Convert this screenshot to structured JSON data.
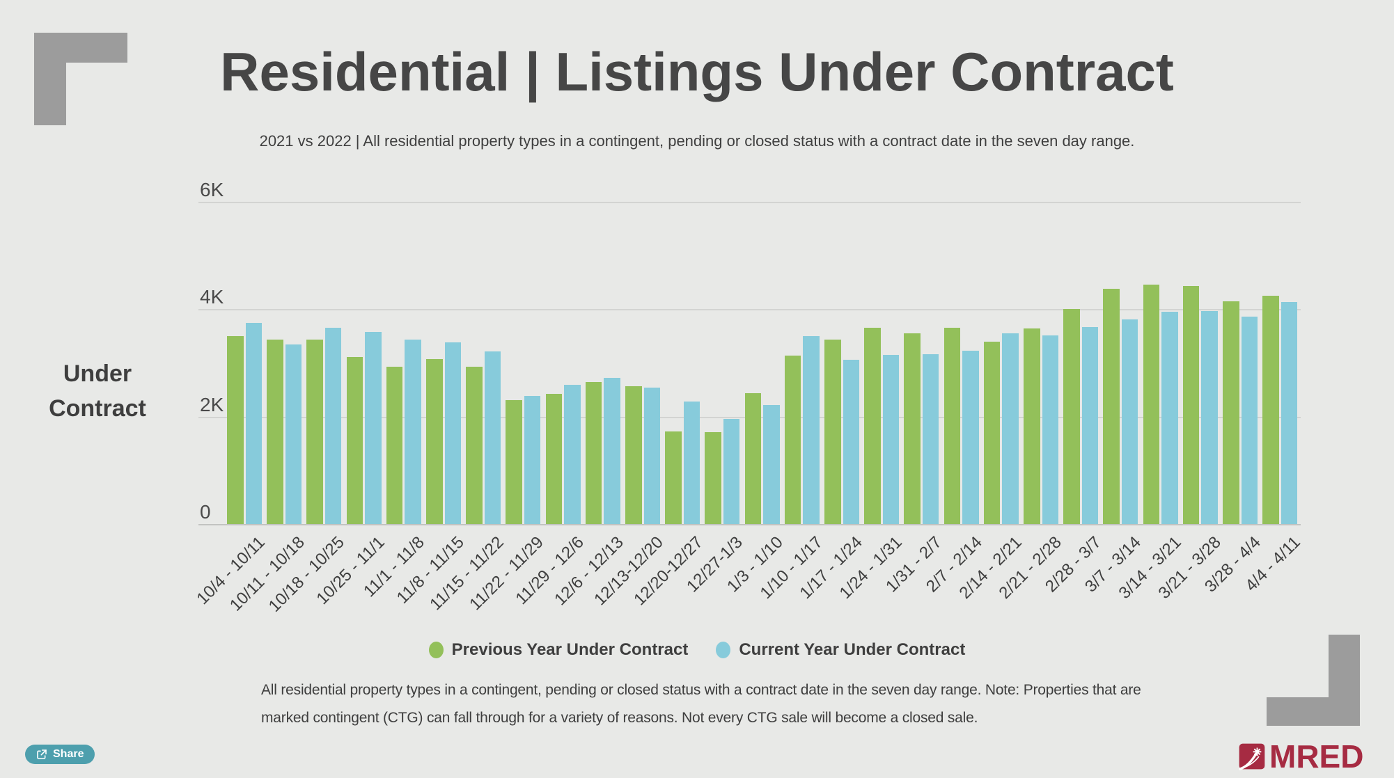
{
  "header": {
    "title": "Residential | Listings Under Contract",
    "subtitle": "2021 vs 2022 | All residential property types in a contingent, pending or closed status with a contract date in the seven day range."
  },
  "chart_data": {
    "type": "bar",
    "title": "Residential | Listings Under Contract",
    "xlabel": "",
    "ylabel": "Under Contract",
    "ylabel_lines": [
      "Under",
      "Contract"
    ],
    "ylim": [
      0,
      6000
    ],
    "grid": true,
    "legend_position": "bottom-center",
    "y_ticks": [
      {
        "label": "6K",
        "value": 6000
      },
      {
        "label": "4K",
        "value": 4000
      },
      {
        "label": "2K",
        "value": 2000
      },
      {
        "label": "0",
        "value": 0
      }
    ],
    "categories": [
      "10/4 - 10/11",
      "10/11 - 10/18",
      "10/18 - 10/25",
      "10/25 - 11/1",
      "11/1 - 11/8",
      "11/8 - 11/15",
      "11/15 - 11/22",
      "11/22 - 11/29",
      "11/29 - 12/6",
      "12/6 - 12/13",
      "12/13-12/20",
      "12/20-12/27",
      "12/27-1/3",
      "1/3 - 1/10",
      "1/10 - 1/17",
      "1/17 - 1/24",
      "1/24 - 1/31",
      "1/31 - 2/7",
      "2/7 - 2/14",
      "2/14 - 2/21",
      "2/21 - 2/28",
      "2/28 - 3/7",
      "3/7 - 3/14",
      "3/14 - 3/21",
      "3/21 - 3/28",
      "3/28 - 4/4",
      "4/4 - 4/11"
    ],
    "series": [
      {
        "name": "Previous Year Under Contract",
        "color": "#93C05A",
        "values": [
          3500,
          3430,
          3430,
          3110,
          2930,
          3070,
          2930,
          2310,
          2420,
          2640,
          2570,
          1730,
          1710,
          2440,
          3130,
          3440,
          3650,
          3550,
          3650,
          3400,
          3640,
          4000,
          4380,
          4460,
          4430,
          4150,
          4250
        ]
      },
      {
        "name": "Current Year Under Contract",
        "color": "#87CBDB",
        "values": [
          3750,
          3340,
          3650,
          3580,
          3430,
          3380,
          3220,
          2380,
          2590,
          2720,
          2540,
          2280,
          1960,
          2220,
          3500,
          3060,
          3150,
          3160,
          3230,
          3550,
          3510,
          3670,
          3810,
          3950,
          3960,
          3860,
          4140
        ]
      }
    ]
  },
  "footer": {
    "note_lines": [
      "All residential property types in a contingent, pending or closed status with a contract date in the seven day range. Note: Properties that are",
      "marked contingent (CTG) can fall through for a variety of reasons. Not every CTG sale will become a closed sale."
    ]
  },
  "toolbar": {
    "share_label": "Share"
  },
  "branding": {
    "logo_text": "MRED"
  },
  "colors": {
    "background": "#E8E9E7",
    "title_text": "#464646",
    "body_text": "#3E3E3E",
    "grid": "#D3D4D2",
    "axis_line": "#C2C3C1",
    "bracket_gray": "#9C9C9C",
    "share_teal": "#4D9FAD",
    "brand_red": "#A62B42",
    "previous_year_green": "#93C05A",
    "current_year_blue": "#87CBDB"
  }
}
